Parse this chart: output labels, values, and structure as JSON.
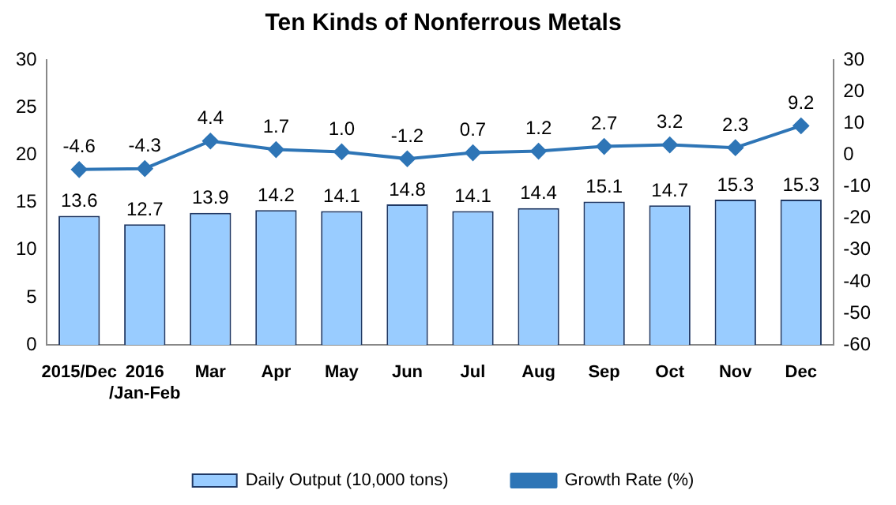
{
  "chart_data": {
    "type": "bar",
    "title": "Ten Kinds of Nonferrous Metals",
    "categories": [
      "2015/Dec",
      "2016 /Jan-Feb",
      "Mar",
      "Apr",
      "May",
      "Jun",
      "Jul",
      "Aug",
      "Sep",
      "Oct",
      "Nov",
      "Dec"
    ],
    "series": [
      {
        "name": "Daily Output (10,000 tons)",
        "color": "#99ccff",
        "values": [
          13.6,
          12.7,
          13.9,
          14.2,
          14.1,
          14.8,
          14.1,
          14.4,
          15.1,
          14.7,
          15.3,
          15.3
        ],
        "value_labels": [
          "13.6",
          "12.7",
          "13.9",
          "14.2",
          "14.1",
          "14.8",
          "14.1",
          "14.4",
          "15.1",
          "14.7",
          "15.3",
          "15.3"
        ]
      },
      {
        "name": "Growth Rate (%)",
        "type": "line",
        "axis": "y2",
        "color": "#2e75b6",
        "values": [
          -4.6,
          -4.3,
          4.4,
          1.7,
          1.0,
          -1.2,
          0.7,
          1.2,
          2.7,
          3.2,
          2.3,
          9.2
        ],
        "value_labels": [
          "-4.6",
          "-4.3",
          "4.4",
          "1.7",
          "1.0",
          "-1.2",
          "0.7",
          "1.2",
          "2.7",
          "3.2",
          "2.3",
          "9.2"
        ]
      }
    ],
    "ylim": [
      0,
      30
    ],
    "yticks": [
      0,
      5,
      10,
      15,
      20,
      25,
      30
    ],
    "y2lim": [
      -60,
      30
    ],
    "y2ticks": [
      -60,
      -50,
      -40,
      -30,
      -20,
      -10,
      0,
      10,
      20,
      30
    ],
    "legend": "bottom",
    "marker": "diamond",
    "line_style": "solid"
  }
}
